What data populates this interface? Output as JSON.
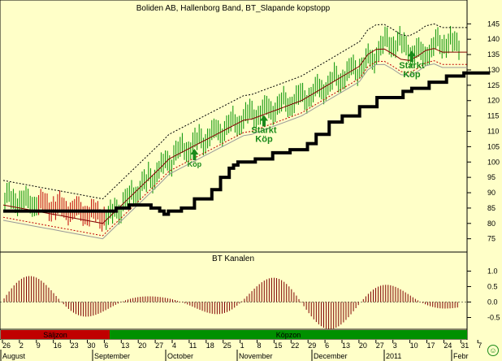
{
  "chart_data": {
    "type": "line",
    "title": "Boliden AB, Hallenborg Band, BT_Slapande kopstopp",
    "ylim": [
      72,
      148
    ],
    "y_ticks": [
      75,
      80,
      85,
      90,
      95,
      100,
      105,
      110,
      115,
      120,
      125,
      130,
      135,
      140,
      145
    ],
    "x_ticks": [
      "26",
      "2",
      "9",
      "16",
      "23",
      "30",
      "6",
      "13",
      "20",
      "27",
      "4",
      "11",
      "18",
      "25",
      "1",
      "8",
      "15",
      "22",
      "29",
      "6",
      "13",
      "20",
      "27",
      "3",
      "10",
      "17",
      "24",
      "31",
      "7"
    ],
    "month_labels": [
      "August",
      "September",
      "October",
      "November",
      "December",
      "2011",
      "Febr"
    ],
    "trailing_stop": {
      "x_index": [
        0,
        12,
        13,
        14.5,
        16,
        17,
        18,
        18.5,
        19,
        20.5,
        22,
        24,
        25,
        26,
        26.5,
        27,
        29,
        31,
        33,
        35,
        36,
        37.5,
        39,
        41,
        43,
        46,
        47,
        49,
        51,
        53,
        56
      ],
      "values": [
        84,
        84,
        85,
        86,
        86,
        85,
        84,
        83,
        84,
        85,
        88,
        91,
        95,
        98,
        99,
        100,
        101,
        103,
        104,
        106,
        109,
        113,
        115,
        118,
        121,
        123,
        124,
        126,
        128,
        129,
        129
      ]
    },
    "annotations": [
      {
        "text": "Köp",
        "x_index": 22,
        "y": 99
      },
      {
        "text": "Starkt Köp",
        "x_index": 30,
        "y": 110
      },
      {
        "text": "Starkt Köp",
        "x_index": 47,
        "y": 131
      }
    ],
    "lower_panel": {
      "title": "BT Kanalen",
      "ylim": [
        -0.75,
        1.3
      ],
      "y_ticks": [
        "1.0",
        "0.5",
        "0.0",
        "-0.5"
      ]
    },
    "zone_bar": {
      "labels": [
        "Säljzon",
        "Köpzon"
      ]
    },
    "colors": {
      "background": "#ffffc8",
      "bars": "#009000",
      "red_bars": "#c00000",
      "stop_line": "#000000",
      "arrow": "#1a8a1a"
    }
  },
  "ui": {
    "corner_icon": "smiley-icon"
  }
}
